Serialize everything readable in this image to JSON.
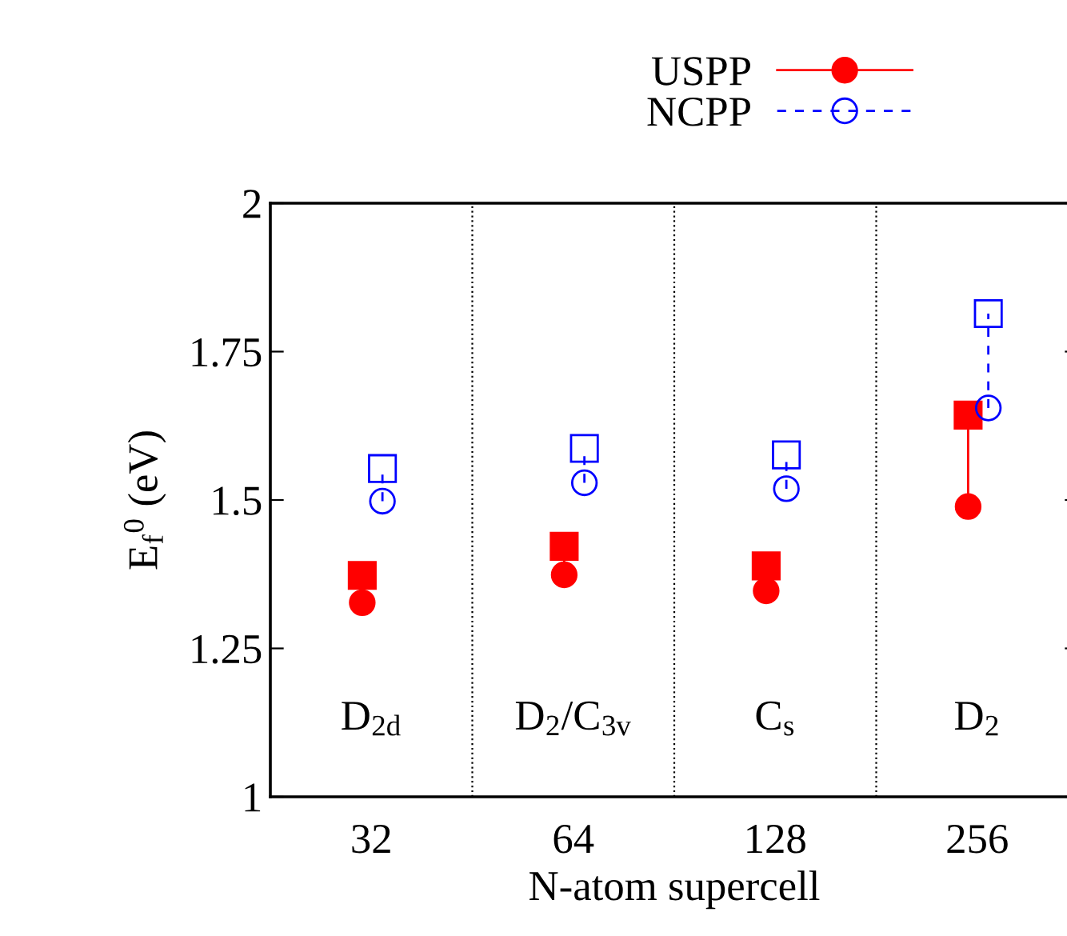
{
  "chart_data": {
    "type": "scatter",
    "xlabel": "N-atom supercell",
    "ylabel": "E$_{f}$$^{0}$ (eV)",
    "categories": [
      "32",
      "64",
      "128",
      "256"
    ],
    "ylim": [
      1,
      2
    ],
    "yticks": [
      1,
      1.25,
      1.5,
      1.75,
      2
    ],
    "grid": "x",
    "legend": "top",
    "series": [
      {
        "name": "USPP",
        "color": "#ff0000",
        "marker": "circle",
        "line_style": "solid",
        "values": [
          1.327,
          1.374,
          1.347,
          1.489
        ]
      },
      {
        "color": "#ff0000",
        "marker": "square",
        "line_style": "solid",
        "values": [
          1.373,
          1.422,
          1.389,
          1.643
        ]
      },
      {
        "name": "NCPP",
        "color": "#0000ff",
        "marker": "circle",
        "line_style": "dashed",
        "values": [
          1.498,
          1.529,
          1.519,
          1.655
        ]
      },
      {
        "color": "#0000ff",
        "marker": "square",
        "line_style": "dashed",
        "values": [
          1.553,
          1.587,
          1.576,
          1.814
        ]
      }
    ],
    "annotations": [
      "D$_{2d}$",
      "D$_{2}$/C$_{3v}$",
      "C$_{s}$",
      "D$_{2}$"
    ]
  }
}
